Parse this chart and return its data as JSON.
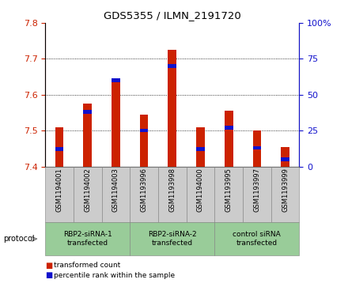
{
  "title": "GDS5355 / ILMN_2191720",
  "samples": [
    "GSM1194001",
    "GSM1194002",
    "GSM1194003",
    "GSM1193996",
    "GSM1193998",
    "GSM1194000",
    "GSM1193995",
    "GSM1193997",
    "GSM1193999"
  ],
  "transformed_counts": [
    7.51,
    7.575,
    7.645,
    7.545,
    7.725,
    7.51,
    7.555,
    7.5,
    7.455
  ],
  "percentile_ranks": [
    12,
    38,
    60,
    25,
    70,
    12,
    27,
    13,
    5
  ],
  "ylim_left": [
    7.4,
    7.8
  ],
  "ylim_right": [
    0,
    100
  ],
  "yticks_left": [
    7.4,
    7.5,
    7.6,
    7.7,
    7.8
  ],
  "yticks_right": [
    0,
    25,
    50,
    75,
    100
  ],
  "bar_color_red": "#cc2200",
  "bar_color_blue": "#1111cc",
  "groups": [
    {
      "label": "RBP2-siRNA-1\ntransfected",
      "start": 0,
      "end": 3,
      "color": "#99cc99"
    },
    {
      "label": "RBP2-siRNA-2\ntransfected",
      "start": 3,
      "end": 6,
      "color": "#99cc99"
    },
    {
      "label": "control siRNA\ntransfected",
      "start": 6,
      "end": 9,
      "color": "#99cc99"
    }
  ],
  "sample_bg_color": "#cccccc",
  "protocol_label": "protocol",
  "legend_red_label": "transformed count",
  "legend_blue_label": "percentile rank within the sample",
  "baseline": 7.4
}
